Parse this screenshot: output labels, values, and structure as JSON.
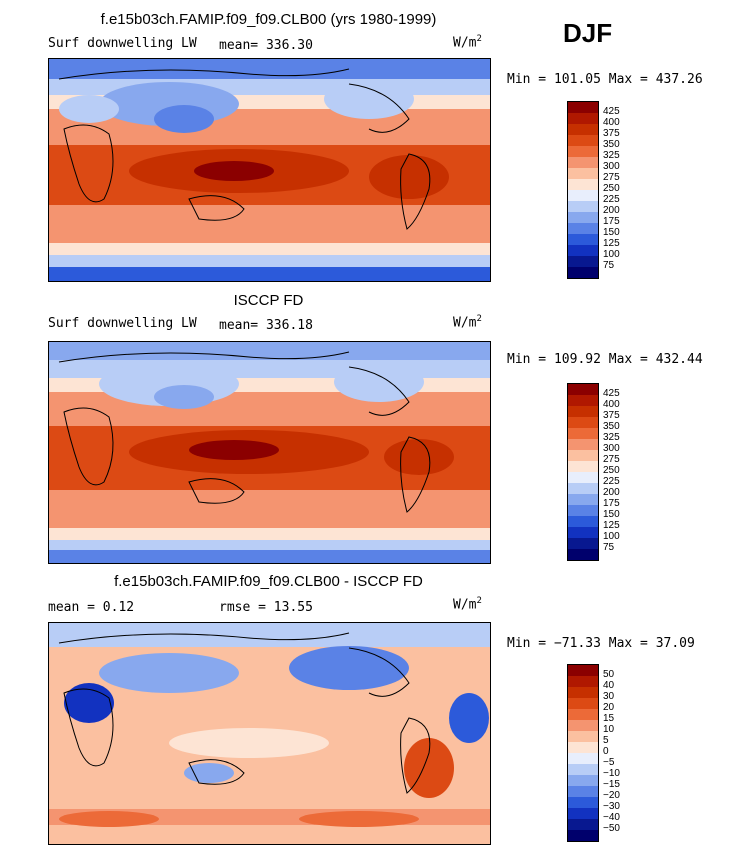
{
  "season": "DJF",
  "units": "W/m",
  "units_exp": "2",
  "panels": [
    {
      "title": "f.e15b03ch.FAMIP.f09_f09.CLB00 (yrs 1980-1999)",
      "field": "Surf downwelling LW",
      "stat1": "mean= 336.30",
      "stat2": "",
      "minmax": "Min = 101.05 Max = 437.26",
      "levels": [
        "425",
        "400",
        "375",
        "350",
        "325",
        "300",
        "275",
        "250",
        "225",
        "200",
        "175",
        "150",
        "125",
        "100",
        "75"
      ],
      "colors": [
        "#8b0000",
        "#b01800",
        "#c63000",
        "#dc4a14",
        "#ec6a38",
        "#f49470",
        "#fbc0a0",
        "#fde4d4",
        "#e8eefc",
        "#b8cdf6",
        "#88a8ee",
        "#5a82e6",
        "#2c5ada",
        "#1232c0",
        "#081890",
        "#00006c"
      ]
    },
    {
      "title": "ISCCP FD",
      "field": "Surf downwelling LW",
      "stat1": "mean= 336.18",
      "stat2": "",
      "minmax": "Min = 109.92 Max = 432.44",
      "levels": [
        "425",
        "400",
        "375",
        "350",
        "325",
        "300",
        "275",
        "250",
        "225",
        "200",
        "175",
        "150",
        "125",
        "100",
        "75"
      ],
      "colors": [
        "#8b0000",
        "#b01800",
        "#c63000",
        "#dc4a14",
        "#ec6a38",
        "#f49470",
        "#fbc0a0",
        "#fde4d4",
        "#e8eefc",
        "#b8cdf6",
        "#88a8ee",
        "#5a82e6",
        "#2c5ada",
        "#1232c0",
        "#081890",
        "#00006c"
      ]
    },
    {
      "title": "f.e15b03ch.FAMIP.f09_f09.CLB00 - ISCCP FD",
      "field": "",
      "stat1": "mean =    0.12",
      "stat2": "rmse =   13.55",
      "minmax": "Min = −71.33 Max =  37.09",
      "levels": [
        "50",
        "40",
        "30",
        "20",
        "15",
        "10",
        "5",
        "0",
        "−5",
        "−10",
        "−15",
        "−20",
        "−30",
        "−40",
        "−50"
      ],
      "colors": [
        "#8b0000",
        "#b01800",
        "#c63000",
        "#dc4a14",
        "#ec6a38",
        "#f49470",
        "#fbc0a0",
        "#fde4d4",
        "#e8eefc",
        "#b8cdf6",
        "#88a8ee",
        "#5a82e6",
        "#2c5ada",
        "#1232c0",
        "#081890",
        "#00006c"
      ]
    }
  ]
}
